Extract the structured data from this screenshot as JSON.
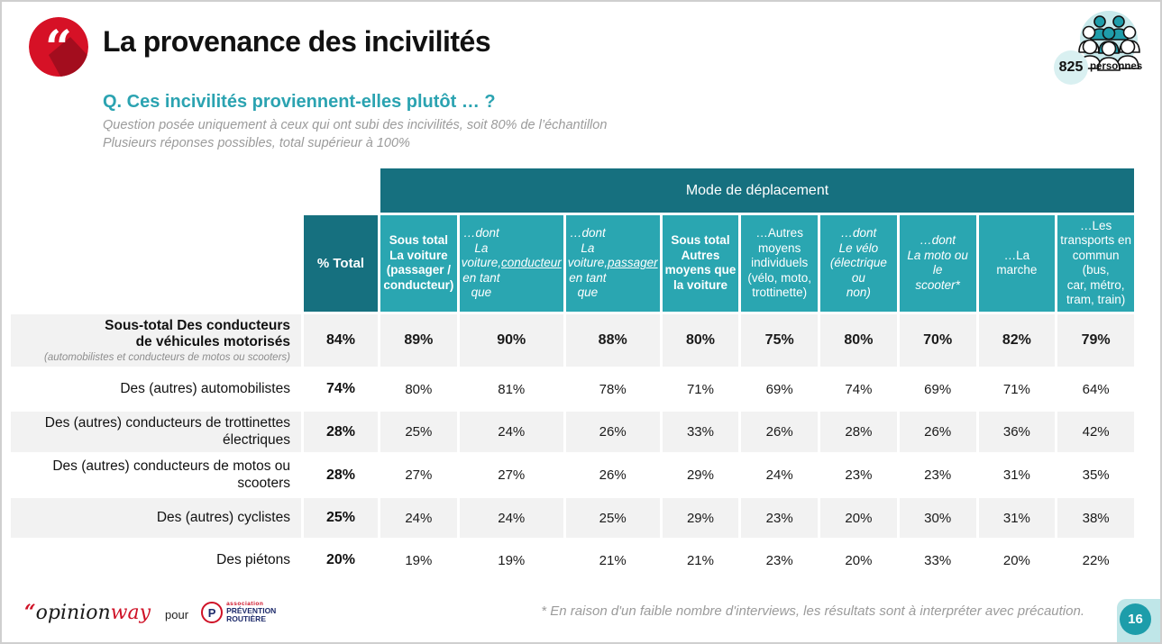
{
  "page": {
    "title": "La provenance des incivilités",
    "page_number": "16"
  },
  "question": {
    "title": "Q. Ces incivilités proviennent-elles plutôt … ?",
    "note_line1": "Question posée uniquement à ceux qui ont subi des incivilités, soit 80% de l’échantillon",
    "note_line2": "Plusieurs réponses possibles, total supérieur à 100%"
  },
  "sample_badge": {
    "count": "825",
    "label": "personnes"
  },
  "table": {
    "group_header": "Mode de déplacement",
    "total_header": "% Total",
    "columns": [
      {
        "text": "Sous total\nLa voiture\n(passager /\nconducteur)",
        "style": "bold",
        "underline": ""
      },
      {
        "text": "…dont\nLa voiture,\nen tant que\n",
        "style": "italic",
        "underline": "conducteur"
      },
      {
        "text": "…dont\nLa voiture,\nen tant que\n",
        "style": "italic",
        "underline": "passager"
      },
      {
        "text": "Sous total\nAutres\nmoyens que\nla voiture",
        "style": "bold",
        "underline": ""
      },
      {
        "text": "…Autres\nmoyens\nindividuels\n(vélo, moto,\ntrottinette)",
        "style": "regular",
        "underline": ""
      },
      {
        "text": "…dont\nLe vélo\n(électrique ou\nnon)",
        "style": "italic",
        "underline": ""
      },
      {
        "text": "…dont\nLa moto ou le\nscooter*",
        "style": "italic",
        "underline": ""
      },
      {
        "text": "…La\nmarche",
        "style": "regular",
        "underline": ""
      },
      {
        "text": "…Les\ntransports en\ncommun (bus,\ncar, métro,\ntram, train)",
        "style": "regular",
        "underline": ""
      }
    ],
    "rows": [
      {
        "label": "Sous-total Des conducteurs\nde véhicules motorisés",
        "sublabel": "(automobilistes et conducteurs de motos ou scooters)",
        "bold": true,
        "total": "84%",
        "values": [
          "89%",
          "90%",
          "88%",
          "80%",
          "75%",
          "80%",
          "70%",
          "82%",
          "79%"
        ]
      },
      {
        "label": "Des (autres) automobilistes",
        "sublabel": "",
        "bold": false,
        "total": "74%",
        "values": [
          "80%",
          "81%",
          "78%",
          "71%",
          "69%",
          "74%",
          "69%",
          "71%",
          "64%"
        ]
      },
      {
        "label": "Des (autres) conducteurs de trottinettes\nélectriques",
        "sublabel": "",
        "bold": false,
        "total": "28%",
        "values": [
          "25%",
          "24%",
          "26%",
          "33%",
          "26%",
          "28%",
          "26%",
          "36%",
          "42%"
        ]
      },
      {
        "label": "Des (autres) conducteurs de motos ou scooters",
        "sublabel": "",
        "bold": false,
        "total": "28%",
        "values": [
          "27%",
          "27%",
          "26%",
          "29%",
          "24%",
          "23%",
          "23%",
          "31%",
          "35%"
        ]
      },
      {
        "label": "Des (autres) cyclistes",
        "sublabel": "",
        "bold": false,
        "total": "25%",
        "values": [
          "24%",
          "24%",
          "25%",
          "29%",
          "23%",
          "20%",
          "30%",
          "31%",
          "38%"
        ]
      },
      {
        "label": "Des piétons",
        "sublabel": "",
        "bold": false,
        "total": "20%",
        "values": [
          "19%",
          "19%",
          "21%",
          "21%",
          "23%",
          "20%",
          "33%",
          "20%",
          "22%"
        ]
      }
    ]
  },
  "footer": {
    "agency_quote": "“",
    "agency_part1": "opinion",
    "agency_part2": "way",
    "pour_label": "pour",
    "client_logo_letter": "P",
    "client_assoc": "association",
    "client_name_line1": "PRÉVENTION",
    "client_name_line2": "ROUTIÈRE",
    "footnote": "* En raison d'un faible nombre d'interviews, les résultats sont à interpréter avec précaution."
  },
  "colors": {
    "teal_dark": "#16707f",
    "teal_light": "#2aa6b1",
    "teal_question": "#2ba3b1",
    "teal_badge_bg": "#c8e9eb",
    "teal_page_circle": "#1d9daa",
    "red_accent": "#d61126",
    "red_shadow": "#a30d1e",
    "row_stripe": "#f2f2f2",
    "text_grey": "#9b9b9b"
  }
}
